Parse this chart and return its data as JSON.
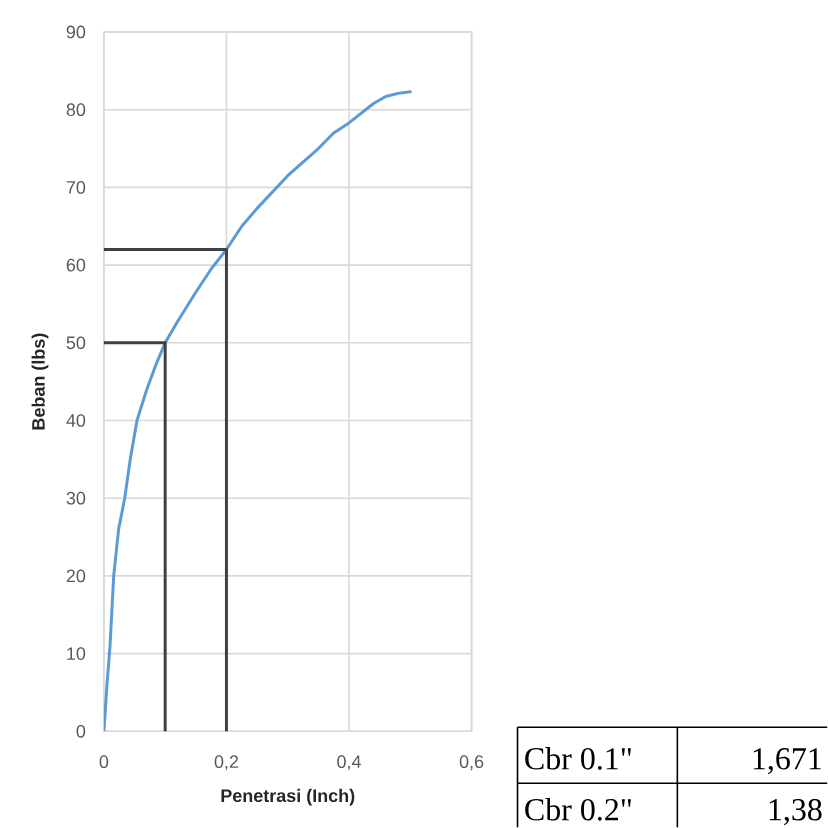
{
  "chart_data": {
    "type": "line",
    "xlabel": "Penetrasi (Inch)",
    "ylabel": "Beban (lbs)",
    "x": [
      0,
      0.005,
      0.01,
      0.016,
      0.024,
      0.034,
      0.043,
      0.054,
      0.07,
      0.085,
      0.1,
      0.12,
      0.15,
      0.175,
      0.2,
      0.225,
      0.25,
      0.3,
      0.35,
      0.375,
      0.4,
      0.44,
      0.46,
      0.48,
      0.5
    ],
    "series": [
      {
        "color": "#5b9bd5",
        "values": [
          0,
          6,
          11,
          20,
          26,
          30,
          35,
          40,
          44,
          47.2,
          50,
          52.7,
          56.5,
          59.5,
          62,
          65,
          67.3,
          71.5,
          75,
          77,
          78.3,
          80.8,
          81.7,
          82.1,
          82.3
        ]
      },
      {
        "type": "line",
        "color": "#404040",
        "x": [
          0,
          0.1,
          0.1
        ],
        "values": [
          50,
          50,
          0
        ]
      },
      {
        "type": "line",
        "color": "#404040",
        "x": [
          0,
          0.2,
          0.2
        ],
        "values": [
          62,
          62,
          0
        ]
      }
    ],
    "xlim": [
      0,
      0.6
    ],
    "ylim": [
      0,
      90
    ],
    "xticks": [
      0,
      {
        "value": 0.2,
        "label": "0,2"
      },
      {
        "value": 0.4,
        "label": "0,4"
      },
      {
        "value": 0.6,
        "label": "0,6"
      }
    ],
    "yticks": [
      0,
      10,
      20,
      30,
      40,
      50,
      60,
      70,
      80,
      90
    ],
    "grid": true,
    "marker": "none",
    "line_style": "solid",
    "annotations": [
      "Cbr 0.1\"",
      "1,671",
      "Cbr 0.2\"",
      "1,38"
    ]
  }
}
